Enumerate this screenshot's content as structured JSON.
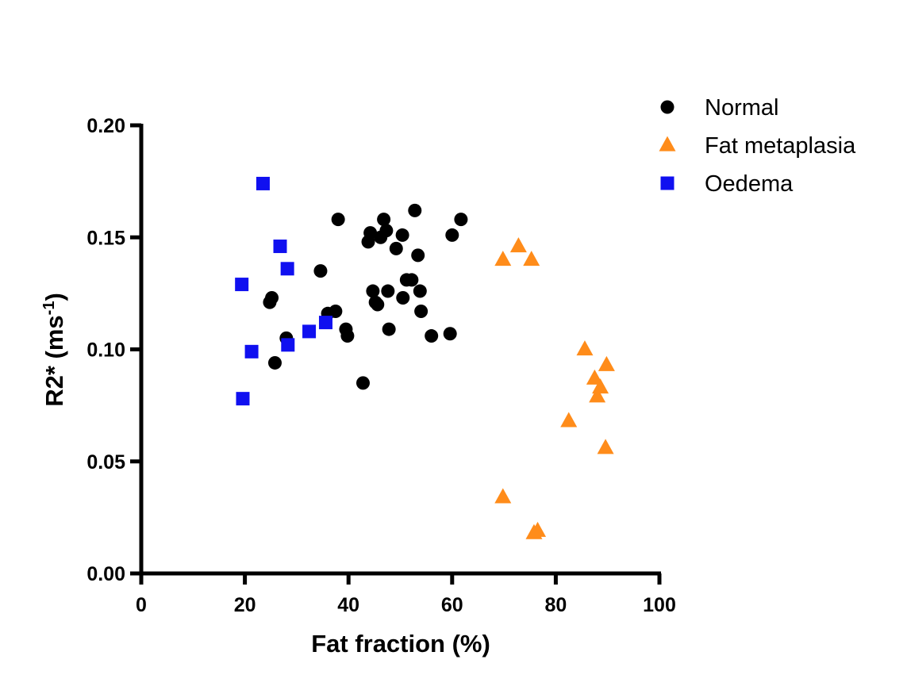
{
  "chart_data": {
    "type": "scatter",
    "title": "",
    "xlabel": "Fat fraction (%)",
    "ylabel": {
      "base": "R2* (ms",
      "superscript": "-1",
      "suffix": ")"
    },
    "xlim": [
      0,
      100
    ],
    "ylim": [
      0,
      0.2
    ],
    "x_ticks": [
      0,
      20,
      40,
      60,
      80,
      100
    ],
    "x_tick_labels": [
      "0",
      "20",
      "40",
      "60",
      "80",
      "100"
    ],
    "y_ticks": [
      0,
      0.05,
      0.1,
      0.15,
      0.2
    ],
    "y_tick_labels": [
      "0.00",
      "0.05",
      "0.10",
      "0.15",
      "0.20"
    ],
    "grid": false,
    "legend_position": "top-right",
    "series": [
      {
        "name": "Normal",
        "marker": "circle",
        "color": "#000000",
        "points": [
          [
            24.8,
            0.121
          ],
          [
            25.2,
            0.123
          ],
          [
            25.8,
            0.094
          ],
          [
            28.0,
            0.105
          ],
          [
            34.6,
            0.135
          ],
          [
            36.0,
            0.116
          ],
          [
            37.5,
            0.117
          ],
          [
            38.0,
            0.158
          ],
          [
            39.5,
            0.109
          ],
          [
            39.8,
            0.106
          ],
          [
            42.8,
            0.085
          ],
          [
            43.8,
            0.148
          ],
          [
            44.2,
            0.152
          ],
          [
            44.7,
            0.126
          ],
          [
            45.2,
            0.121
          ],
          [
            45.6,
            0.12
          ],
          [
            46.2,
            0.15
          ],
          [
            46.8,
            0.158
          ],
          [
            47.3,
            0.153
          ],
          [
            47.6,
            0.126
          ],
          [
            47.8,
            0.109
          ],
          [
            49.2,
            0.145
          ],
          [
            50.4,
            0.151
          ],
          [
            50.5,
            0.123
          ],
          [
            51.2,
            0.131
          ],
          [
            52.2,
            0.131
          ],
          [
            52.8,
            0.162
          ],
          [
            53.4,
            0.142
          ],
          [
            53.8,
            0.126
          ],
          [
            54.0,
            0.117
          ],
          [
            56.0,
            0.106
          ],
          [
            59.6,
            0.107
          ],
          [
            60.0,
            0.151
          ],
          [
            61.7,
            0.158
          ]
        ]
      },
      {
        "name": "Fat metaplasia",
        "marker": "triangle",
        "color": "#ff8c1a",
        "points": [
          [
            69.8,
            0.14
          ],
          [
            72.8,
            0.146
          ],
          [
            75.3,
            0.14
          ],
          [
            69.8,
            0.034
          ],
          [
            75.8,
            0.018
          ],
          [
            76.5,
            0.019
          ],
          [
            82.5,
            0.068
          ],
          [
            85.6,
            0.1
          ],
          [
            87.5,
            0.087
          ],
          [
            88.0,
            0.079
          ],
          [
            88.6,
            0.083
          ],
          [
            89.6,
            0.056
          ],
          [
            89.8,
            0.093
          ]
        ]
      },
      {
        "name": "Oedema",
        "marker": "square",
        "color": "#1010f0",
        "points": [
          [
            19.4,
            0.129
          ],
          [
            19.6,
            0.078
          ],
          [
            21.3,
            0.099
          ],
          [
            23.5,
            0.174
          ],
          [
            26.8,
            0.146
          ],
          [
            28.2,
            0.136
          ],
          [
            28.3,
            0.102
          ],
          [
            32.4,
            0.108
          ],
          [
            35.6,
            0.112
          ]
        ]
      }
    ]
  }
}
